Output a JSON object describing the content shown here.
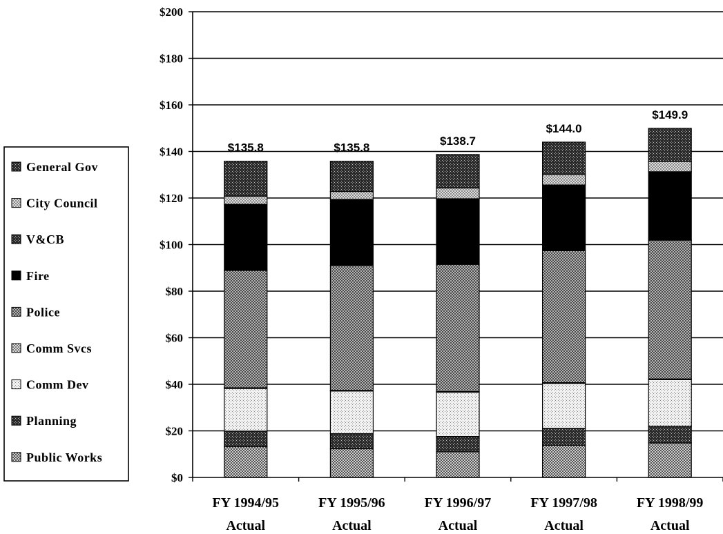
{
  "chart_data": {
    "type": "bar",
    "stacked": true,
    "categories": [
      "FY 1994/95 Actual",
      "FY 1995/96 Actual",
      "FY 1996/97 Actual",
      "FY 1997/98 Actual",
      "FY 1998/99 Actual"
    ],
    "category_lines": [
      [
        "FY 1994/95",
        "Actual"
      ],
      [
        "FY 1995/96",
        "Actual"
      ],
      [
        "FY 1996/97",
        "Actual"
      ],
      [
        "FY 1997/98",
        "Actual"
      ],
      [
        "FY 1998/99",
        "Actual"
      ]
    ],
    "series": [
      {
        "name": "Public Works",
        "values": [
          13.2,
          12.3,
          11.0,
          13.8,
          14.8
        ],
        "color": "#9a9a9a",
        "pattern": "dots-fine"
      },
      {
        "name": "Planning",
        "values": [
          6.7,
          6.5,
          6.6,
          7.3,
          7.2
        ],
        "color": "#3c3c3c",
        "pattern": "dense"
      },
      {
        "name": "Comm Dev",
        "values": [
          18.3,
          18.3,
          19.0,
          19.3,
          20.0
        ],
        "color": "#e6e6e6",
        "pattern": "light"
      },
      {
        "name": "Comm Svcs",
        "values": [
          0.3,
          0.3,
          0.3,
          0.3,
          0.3
        ],
        "color": "#c8c8c8",
        "pattern": "check"
      },
      {
        "name": "Police",
        "values": [
          50.4,
          53.6,
          54.6,
          56.7,
          59.6
        ],
        "color": "#8a8a8a",
        "pattern": "check-mid"
      },
      {
        "name": "Fire",
        "values": [
          28.4,
          28.4,
          28.2,
          28.2,
          29.4
        ],
        "color": "#000000",
        "pattern": "solid"
      },
      {
        "name": "V&CB",
        "values": [
          0.0,
          0.0,
          0.0,
          0.0,
          0.0
        ],
        "color": "#505050",
        "pattern": "dense"
      },
      {
        "name": "City Council",
        "values": [
          3.5,
          3.4,
          4.6,
          4.5,
          4.4
        ],
        "color": "#c0c0c0",
        "pattern": "light-check"
      },
      {
        "name": "General Gov",
        "values": [
          15.0,
          13.0,
          14.4,
          13.9,
          14.2
        ],
        "color": "#4a4a4a",
        "pattern": "dense"
      }
    ],
    "totals": [
      135.8,
      135.8,
      138.7,
      144.0,
      149.9
    ],
    "total_labels": [
      "$135.8",
      "$135.8",
      "$138.7",
      "$144.0",
      "$149.9"
    ],
    "ylim": [
      0,
      200
    ],
    "y_ticks": [
      0,
      20,
      40,
      60,
      80,
      100,
      120,
      140,
      160,
      180,
      200
    ],
    "y_tick_labels": [
      "$0",
      "$20",
      "$40",
      "$60",
      "$80",
      "$100",
      "$120",
      "$140",
      "$160",
      "$180",
      "$200"
    ],
    "legend_order": [
      "General Gov",
      "City Council",
      "V&CB",
      "Fire",
      "Police",
      "Comm Svcs",
      "Comm Dev",
      "Planning",
      "Public Works"
    ],
    "legend_placement": "left",
    "grid": true,
    "title": "",
    "xlabel": "",
    "ylabel": ""
  }
}
